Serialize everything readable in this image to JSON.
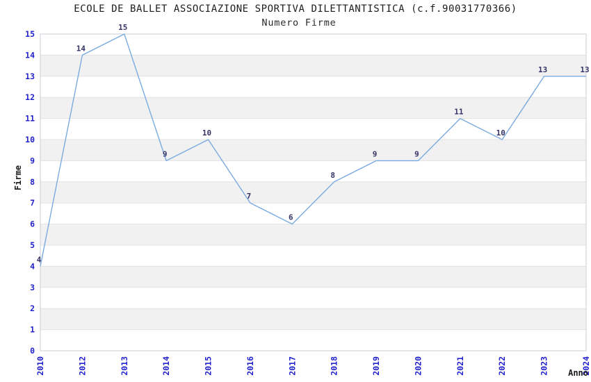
{
  "chart_data": {
    "type": "line",
    "title": "ECOLE DE BALLET ASSOCIAZIONE SPORTIVA DILETTANTISTICA (c.f.90031770366)",
    "subtitle": "Numero Firme",
    "xlabel": "Anno",
    "ylabel": "Firme",
    "categories": [
      "2010",
      "2012",
      "2013",
      "2014",
      "2015",
      "2016",
      "2017",
      "2018",
      "2019",
      "2020",
      "2021",
      "2022",
      "2023",
      "2024"
    ],
    "values": [
      4,
      14,
      15,
      9,
      10,
      7,
      6,
      8,
      9,
      9,
      11,
      10,
      13,
      13
    ],
    "point_labels": [
      "4",
      "14",
      "15",
      "9",
      "10",
      "7",
      "6",
      "8",
      "9",
      "9",
      "11",
      "10",
      "13",
      "13"
    ],
    "yticks": [
      0,
      1,
      2,
      3,
      4,
      5,
      6,
      7,
      8,
      9,
      10,
      11,
      12,
      13,
      14,
      15
    ],
    "ylim": [
      0,
      15
    ],
    "grid": "alternating-horizontal-bands",
    "legend": "none",
    "colors": {
      "line": "#7aabe0",
      "point_label": "#333366",
      "tick_label": "#2222cc",
      "title_text": "#1c1c1c",
      "axis_title": "#1a1a1a",
      "band": "#f1f1f1",
      "gridline": "#e2e2e2",
      "border": "#c9ced6",
      "background": "#ffffff"
    }
  }
}
